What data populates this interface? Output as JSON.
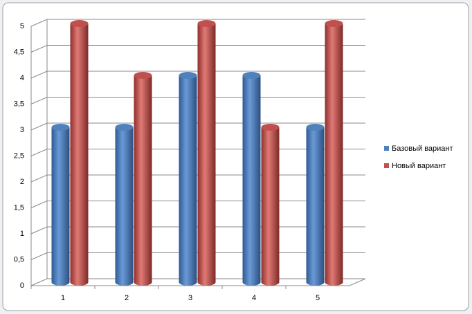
{
  "chart_data": {
    "type": "bar",
    "categories": [
      "1",
      "2",
      "3",
      "4",
      "5"
    ],
    "series": [
      {
        "name": "Базовый вариант",
        "color": "#4f81bd",
        "values": [
          3,
          3,
          4,
          4,
          3
        ]
      },
      {
        "name": "Новый вариант",
        "color": "#c0504d",
        "values": [
          5,
          4,
          5,
          3,
          5
        ]
      }
    ],
    "ylim": [
      0,
      5
    ],
    "yticks": [
      0,
      {
        "value": 0.5,
        "label": "0,5"
      },
      1,
      {
        "value": 1.5,
        "label": "1,5"
      },
      2,
      {
        "value": 2.5,
        "label": "2,5"
      },
      3,
      {
        "value": 3.5,
        "label": "3,5"
      },
      4,
      {
        "value": 4.5,
        "label": "4,5"
      },
      5
    ],
    "grid": true,
    "legend": "right"
  }
}
